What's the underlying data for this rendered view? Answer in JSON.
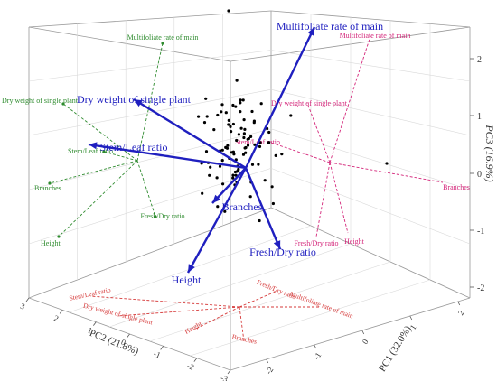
{
  "chart_data": {
    "type": "scatter",
    "subtype": "3d-biplot",
    "title": "",
    "axes": {
      "x": {
        "label": "PC1 (32.0%)",
        "ticks": [
          -2,
          -1,
          0,
          1,
          2
        ]
      },
      "y": {
        "label": "PC2 (21.8%)",
        "ticks": [
          -3,
          -2,
          -1,
          0,
          1,
          2,
          3
        ]
      },
      "z": {
        "label": "PC3 (16.9%)",
        "ticks": [
          "-2",
          "-1",
          "0",
          "1",
          "2"
        ]
      }
    },
    "loadings": [
      {
        "name": "Multifoliate rate of main",
        "pc1": 0.7,
        "pc2": 0.0,
        "pc3": 2.4
      },
      {
        "name": "Dry weight of single plant",
        "pc1": -1.2,
        "pc2": 1.0,
        "pc3": 1.4
      },
      {
        "name": "Stem/Leaf ratio",
        "pc1": -1.2,
        "pc2": 0.5,
        "pc3": 0.4
      },
      {
        "name": "Branches",
        "pc1": 0.0,
        "pc2": 0.6,
        "pc3": -0.6
      },
      {
        "name": "Fresh/Dry ratio",
        "pc1": 0.5,
        "pc2": 0.5,
        "pc3": -1.3
      },
      {
        "name": "Height",
        "pc1": -0.6,
        "pc2": 0.3,
        "pc3": -1.8
      }
    ],
    "projection_labels": {
      "pc2_pc3_plane": [
        "Multifoliate rate of main",
        "Dry weight of single plant",
        "Stem/Leaf ratio",
        "Branches",
        "Fresh/Dry ratio",
        "Height"
      ],
      "pc1_pc3_plane": [
        "Multifoliate rate of main",
        "Dry weight of single plant",
        "Stem/Leaf ratio",
        "Branches",
        "Fresh/Dry ratio",
        "Height"
      ],
      "pc1_pc2_plane": [
        "Stem/Leaf ratio",
        "Dry weight of single plant",
        "Height",
        "Fresh/Dry ratio",
        "Multifoliate rate of main",
        "Branches"
      ]
    },
    "points_screen_approx_count": 90,
    "colors": {
      "loading_arrow": "#1f1fbf",
      "pc2_pc3_projection": "#2e8b2e",
      "pc1_pc3_projection": "#d4267a",
      "pc1_pc2_projection": "#d63a3a",
      "point": "#000000",
      "grid": "#d9d9d9",
      "frame": "#999999"
    }
  }
}
